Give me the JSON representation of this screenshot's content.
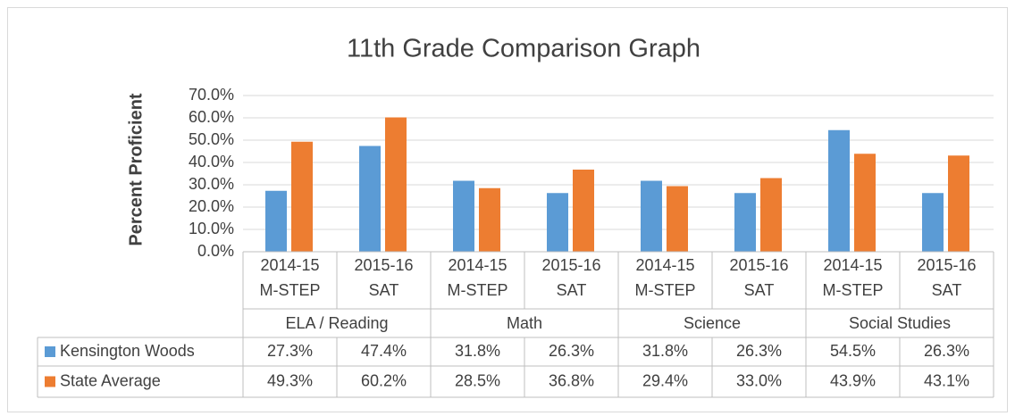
{
  "chart_data": {
    "type": "bar",
    "title": "11th Grade Comparison Graph",
    "y_label": "Percent Proficient",
    "categories": [
      [
        "2014-15",
        "M-STEP"
      ],
      [
        "2015-16",
        "SAT"
      ],
      [
        "2014-15",
        "M-STEP"
      ],
      [
        "2015-16",
        "SAT"
      ],
      [
        "2014-15",
        "M-STEP"
      ],
      [
        "2015-16",
        "SAT"
      ],
      [
        "2014-15",
        "M-STEP"
      ],
      [
        "2015-16",
        "SAT"
      ]
    ],
    "groups": [
      "ELA / Reading",
      "Math",
      "Science",
      "Social Studies"
    ],
    "series": [
      {
        "name": "Kensington Woods",
        "color": "#5b9bd5",
        "values": [
          27.3,
          47.4,
          31.8,
          26.3,
          31.8,
          26.3,
          54.5,
          26.3
        ],
        "value_labels": [
          "27.3%",
          "47.4%",
          "31.8%",
          "26.3%",
          "31.8%",
          "26.3%",
          "54.5%",
          "26.3%"
        ]
      },
      {
        "name": "State Average",
        "color": "#ed7d31",
        "values": [
          49.3,
          60.2,
          28.5,
          36.8,
          29.4,
          33.0,
          43.9,
          43.1
        ],
        "value_labels": [
          "49.3%",
          "60.2%",
          "28.5%",
          "36.8%",
          "29.4%",
          "33.0%",
          "43.9%",
          "43.1%"
        ]
      }
    ],
    "ylim": [
      0,
      70
    ],
    "yticks": [
      {
        "value": 0,
        "label": "0.0%"
      },
      {
        "value": 10,
        "label": "10.0%"
      },
      {
        "value": 20,
        "label": "20.0%"
      },
      {
        "value": 30,
        "label": "30.0%"
      },
      {
        "value": 40,
        "label": "40.0%"
      },
      {
        "value": 50,
        "label": "50.0%"
      },
      {
        "value": 60,
        "label": "60.0%"
      },
      {
        "value": 70,
        "label": "70.0%"
      }
    ],
    "grid": true
  }
}
